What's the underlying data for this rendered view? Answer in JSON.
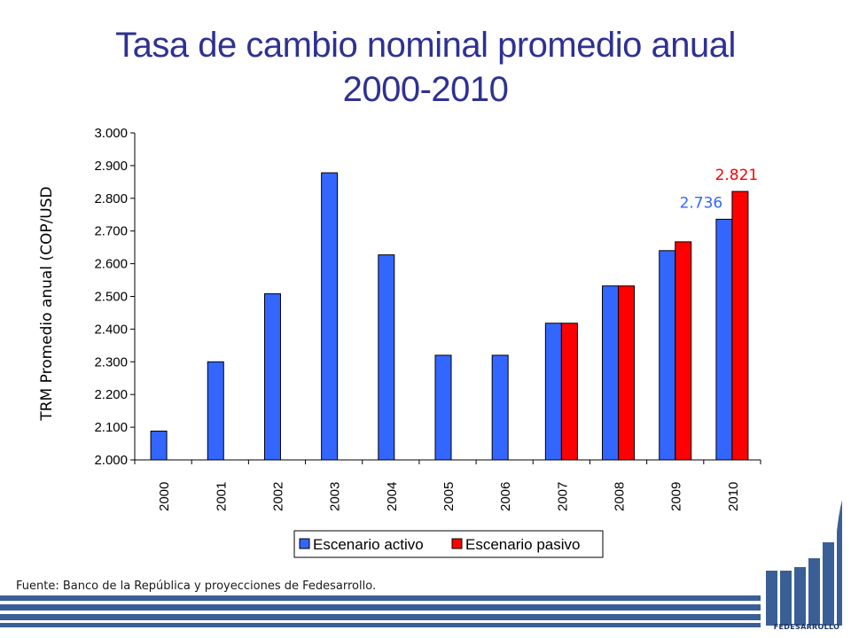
{
  "title_line1": "Tasa de cambio nominal promedio anual",
  "title_line2": "2000-2010",
  "source_note": "Fuente: Banco de la República y proyecciones de Fedesarrollo.",
  "logo_text": "FEDESARROLLO",
  "colors": {
    "title": "#2e3192",
    "active": "#3366ff",
    "passive": "#ff0000",
    "footer": "#3a5f96"
  },
  "chart_data": {
    "type": "bar",
    "title": "",
    "ylabel": "TRM Promedio anual (COP/USD",
    "ylim": [
      2000,
      3000
    ],
    "yticks": [
      2000,
      2100,
      2200,
      2300,
      2400,
      2500,
      2600,
      2700,
      2800,
      2900,
      3000
    ],
    "ytick_labels": [
      "2.000",
      "2.100",
      "2.200",
      "2.300",
      "2.400",
      "2.500",
      "2.600",
      "2.700",
      "2.800",
      "2.900",
      "3.000"
    ],
    "categories": [
      "2000",
      "2001",
      "2002",
      "2003",
      "2004",
      "2005",
      "2006",
      "2007",
      "2008",
      "2009",
      "2010"
    ],
    "series": [
      {
        "name": "Escenario activo",
        "color": "#3366ff",
        "values": [
          2088,
          2300,
          2508,
          2878,
          2627,
          2320,
          2320,
          2418,
          2532,
          2640,
          2736
        ]
      },
      {
        "name": "Escenario pasivo",
        "color": "#ff0000",
        "values": [
          null,
          null,
          null,
          null,
          null,
          null,
          null,
          2418,
          2532,
          2667,
          2821
        ]
      }
    ],
    "data_labels": [
      {
        "series": 0,
        "category": "2010",
        "text": "2.736",
        "color": "#3366ff"
      },
      {
        "series": 1,
        "category": "2010",
        "text": "2.821",
        "color": "#ff0000"
      }
    ],
    "legend_position": "bottom",
    "grid": false
  }
}
